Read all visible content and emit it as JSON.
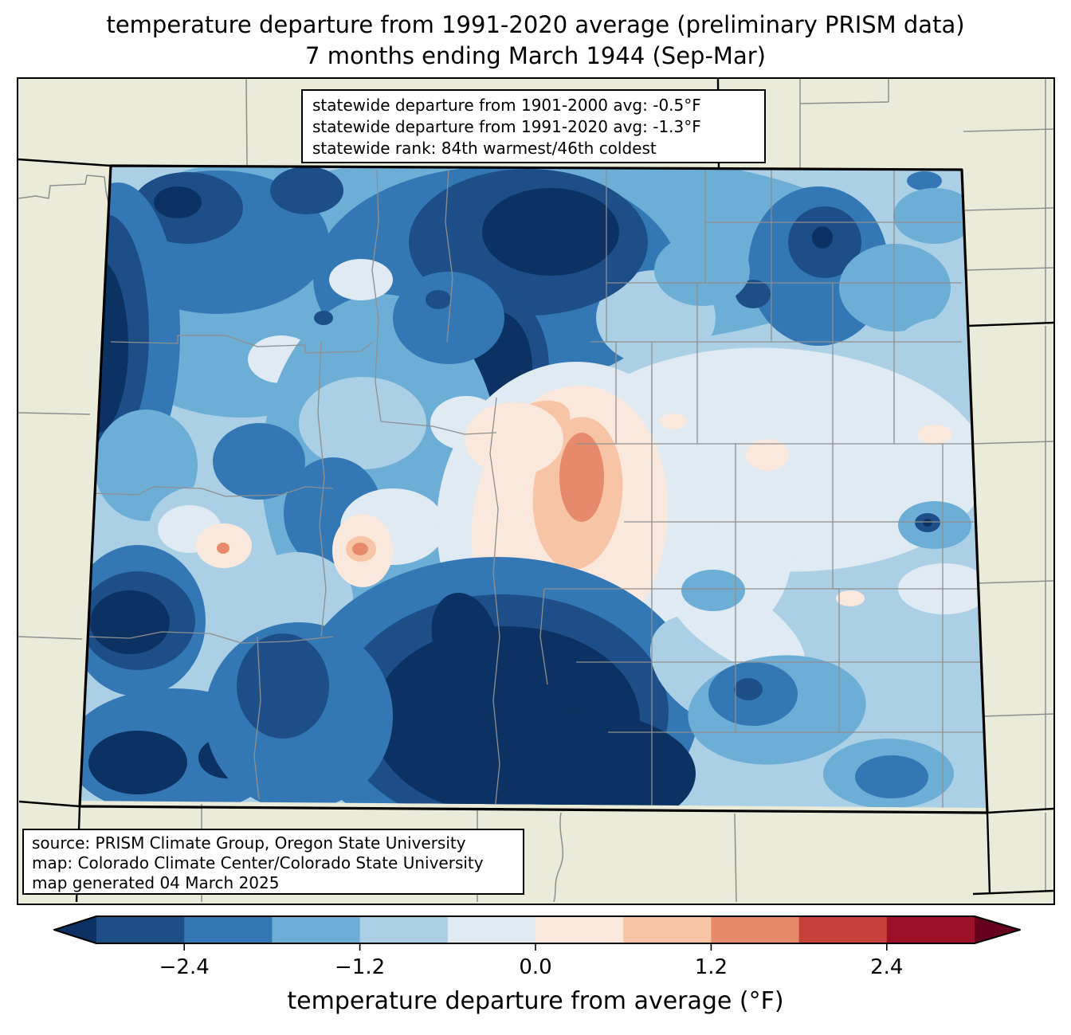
{
  "title": {
    "line1": "temperature departure from 1991-2020 average (preliminary PRISM data)",
    "line2": "7 months ending March 1944 (Sep-Mar)"
  },
  "stats_box": {
    "line1": "statewide departure from 1901-2000 avg: -0.5°F",
    "line2": "statewide departure from 1991-2020 avg: -1.3°F",
    "line3": "statewide rank: 84th warmest/46th coldest"
  },
  "stats_values": {
    "departure_from_1901_2000_avg_f": -0.5,
    "departure_from_1991_2020_avg_f": -1.3,
    "rank_warmest": 84,
    "rank_coldest": 46
  },
  "source_box": {
    "line1": "source: PRISM Climate Group, Oregon State University",
    "line2": "map: Colorado Climate Center/Colorado State University",
    "line3": "map generated 04 March 2025"
  },
  "map": {
    "region": "Colorado",
    "background_color": "#ebebd9",
    "state_border_color": "#000000",
    "county_line_color": "#8f8f8f",
    "dominant_anomaly": "below average (blues) over most of the state, small above-average pocket in the central/east-central mountains"
  },
  "colorbar": {
    "axis_label": "temperature departure from average (°F)",
    "ticks": [
      {
        "label": "−2.4",
        "pct": 10
      },
      {
        "label": "−1.2",
        "pct": 30
      },
      {
        "label": "0.0",
        "pct": 50
      },
      {
        "label": "1.2",
        "pct": 70
      },
      {
        "label": "2.4",
        "pct": 90
      }
    ],
    "value_range_f": [
      -3.0,
      3.0
    ],
    "interval_f": 0.6,
    "segments": [
      "#1d4e88",
      "#3377b5",
      "#6caed6",
      "#abd0e6",
      "#dfeaf2",
      "#fbe8dc",
      "#f7c4a6",
      "#e78a6c",
      "#c6403c",
      "#9c1127"
    ],
    "under_color": "#0c3263",
    "over_color": "#67001f"
  }
}
